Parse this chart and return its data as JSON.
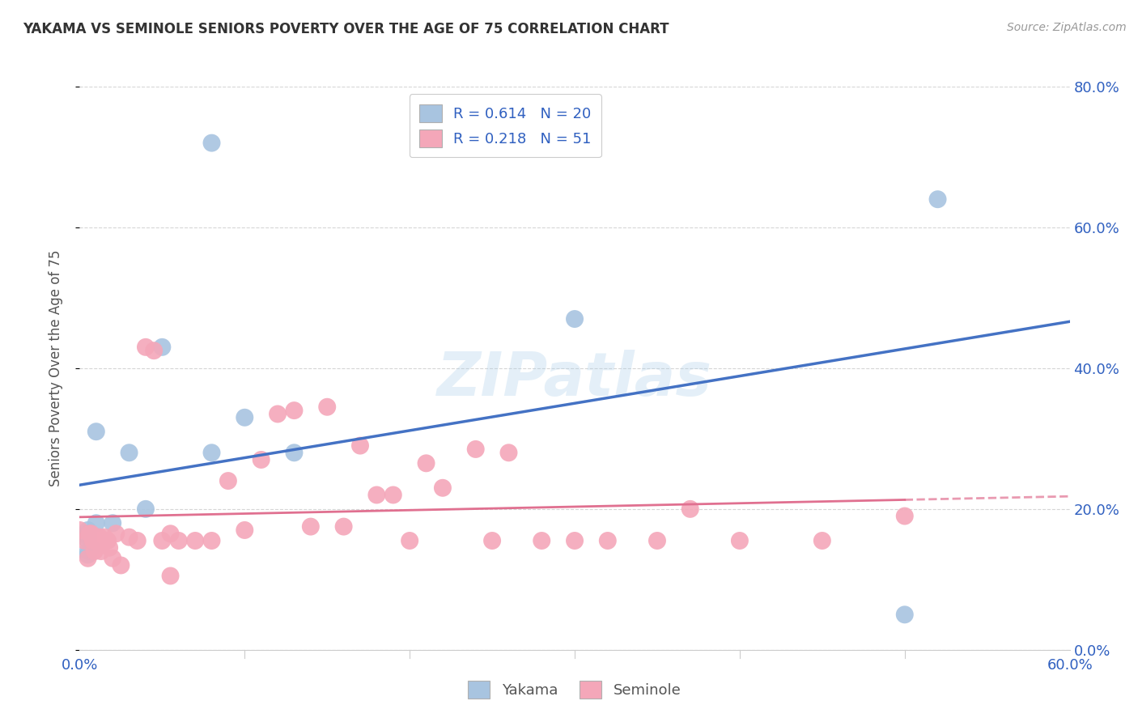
{
  "title": "YAKAMA VS SEMINOLE SENIORS POVERTY OVER THE AGE OF 75 CORRELATION CHART",
  "source": "Source: ZipAtlas.com",
  "ylabel": "Seniors Poverty Over the Age of 75",
  "xlim": [
    0.0,
    0.6
  ],
  "ylim": [
    0.0,
    0.8
  ],
  "yticks": [
    0.0,
    0.2,
    0.4,
    0.6,
    0.8
  ],
  "yakama_R": 0.614,
  "yakama_N": 20,
  "seminole_R": 0.218,
  "seminole_N": 51,
  "yakama_color": "#a8c4e0",
  "seminole_color": "#f4a7b9",
  "yakama_line_color": "#4472c4",
  "seminole_line_color": "#e07090",
  "legend_text_color": "#3060c0",
  "background_color": "#ffffff",
  "grid_color": "#cccccc",
  "watermark": "ZIPatlas",
  "yakama_x": [
    0.005,
    0.005,
    0.005,
    0.005,
    0.005,
    0.005,
    0.007,
    0.01,
    0.01,
    0.02,
    0.03,
    0.04,
    0.05,
    0.08,
    0.1,
    0.13,
    0.3,
    0.5,
    0.52,
    0.08
  ],
  "yakama_y": [
    0.17,
    0.165,
    0.16,
    0.155,
    0.14,
    0.135,
    0.145,
    0.18,
    0.31,
    0.18,
    0.28,
    0.2,
    0.43,
    0.28,
    0.33,
    0.28,
    0.47,
    0.05,
    0.64,
    0.72
  ],
  "seminole_x": [
    0.0,
    0.003,
    0.005,
    0.006,
    0.007,
    0.008,
    0.009,
    0.01,
    0.012,
    0.013,
    0.015,
    0.017,
    0.018,
    0.02,
    0.022,
    0.025,
    0.03,
    0.035,
    0.04,
    0.045,
    0.05,
    0.055,
    0.06,
    0.07,
    0.08,
    0.09,
    0.1,
    0.11,
    0.12,
    0.13,
    0.14,
    0.15,
    0.16,
    0.17,
    0.18,
    0.19,
    0.2,
    0.21,
    0.22,
    0.24,
    0.25,
    0.26,
    0.28,
    0.3,
    0.32,
    0.35,
    0.37,
    0.4,
    0.45,
    0.5,
    0.055
  ],
  "seminole_y": [
    0.17,
    0.155,
    0.13,
    0.165,
    0.165,
    0.155,
    0.14,
    0.155,
    0.16,
    0.14,
    0.16,
    0.155,
    0.145,
    0.13,
    0.165,
    0.12,
    0.16,
    0.155,
    0.43,
    0.425,
    0.155,
    0.165,
    0.155,
    0.155,
    0.155,
    0.24,
    0.17,
    0.27,
    0.335,
    0.34,
    0.175,
    0.345,
    0.175,
    0.29,
    0.22,
    0.22,
    0.155,
    0.265,
    0.23,
    0.285,
    0.155,
    0.28,
    0.155,
    0.155,
    0.155,
    0.155,
    0.2,
    0.155,
    0.155,
    0.19,
    0.105
  ]
}
